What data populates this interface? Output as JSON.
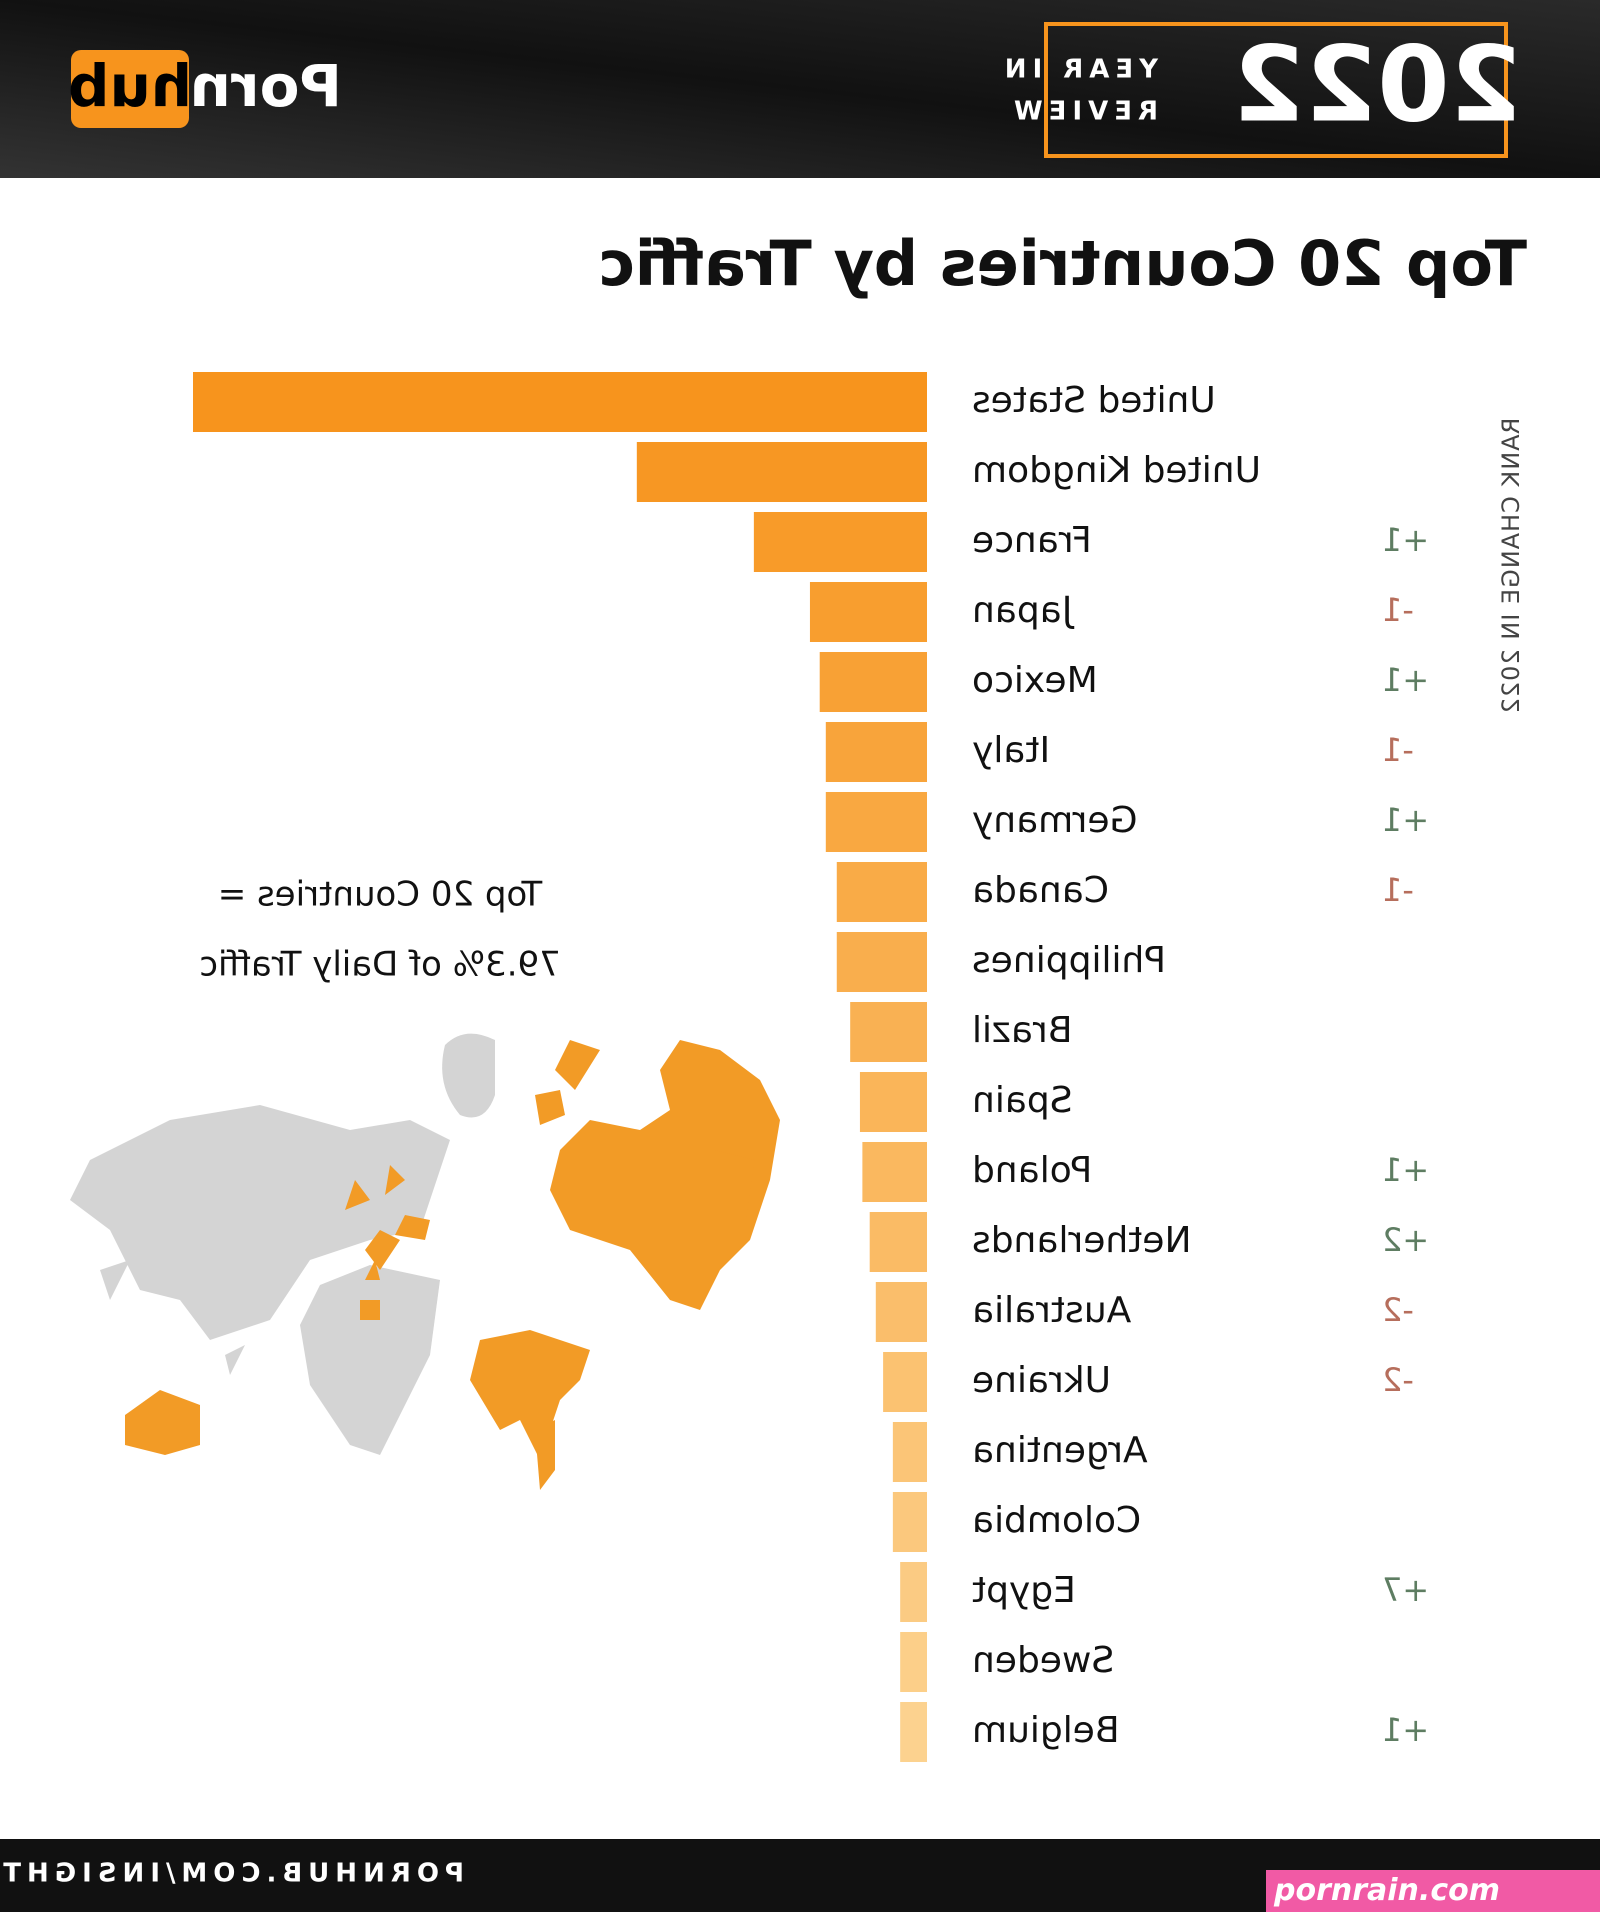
{
  "header": {
    "logo": {
      "left": "Porn",
      "right": "hub"
    },
    "badge": {
      "year": "2022",
      "line1": "YEAR IN",
      "line2": "REVIEW"
    }
  },
  "chart_data": {
    "type": "bar",
    "orientation": "horizontal",
    "title": "Top 20 Countries by Traffic",
    "categories": [
      "United States",
      "United Kingdom",
      "France",
      "Japan",
      "Mexico",
      "Italy",
      "Germany",
      "Canada",
      "Philippines",
      "Brazil",
      "Spain",
      "Poland",
      "Netherlands",
      "Australia",
      "Ukraine",
      "Argentina",
      "Colombia",
      "Egypt",
      "Sweden",
      "Belgium"
    ],
    "values": [
      602,
      238,
      142,
      96,
      88,
      83,
      83,
      74,
      74,
      63,
      55,
      53,
      47,
      42,
      36,
      28,
      28,
      22,
      22,
      22
    ],
    "color": "#f7941d",
    "color_end": "#fcd28f",
    "rank_change_label": "RANK CHANGE IN 2022",
    "rank_change": [
      null,
      null,
      "+1",
      "-1",
      "+1",
      "-1",
      "+1",
      "-1",
      null,
      null,
      null,
      "+1",
      "+2",
      "-2",
      "-2",
      null,
      null,
      "+7",
      null,
      "+1"
    ],
    "annotation": [
      "Top 20 Countries =",
      "79.3% of Daily Traffic"
    ]
  },
  "footer": {
    "url": "PORNHUB.COM/INSIGHTS",
    "watermark": "pornrain.com"
  }
}
